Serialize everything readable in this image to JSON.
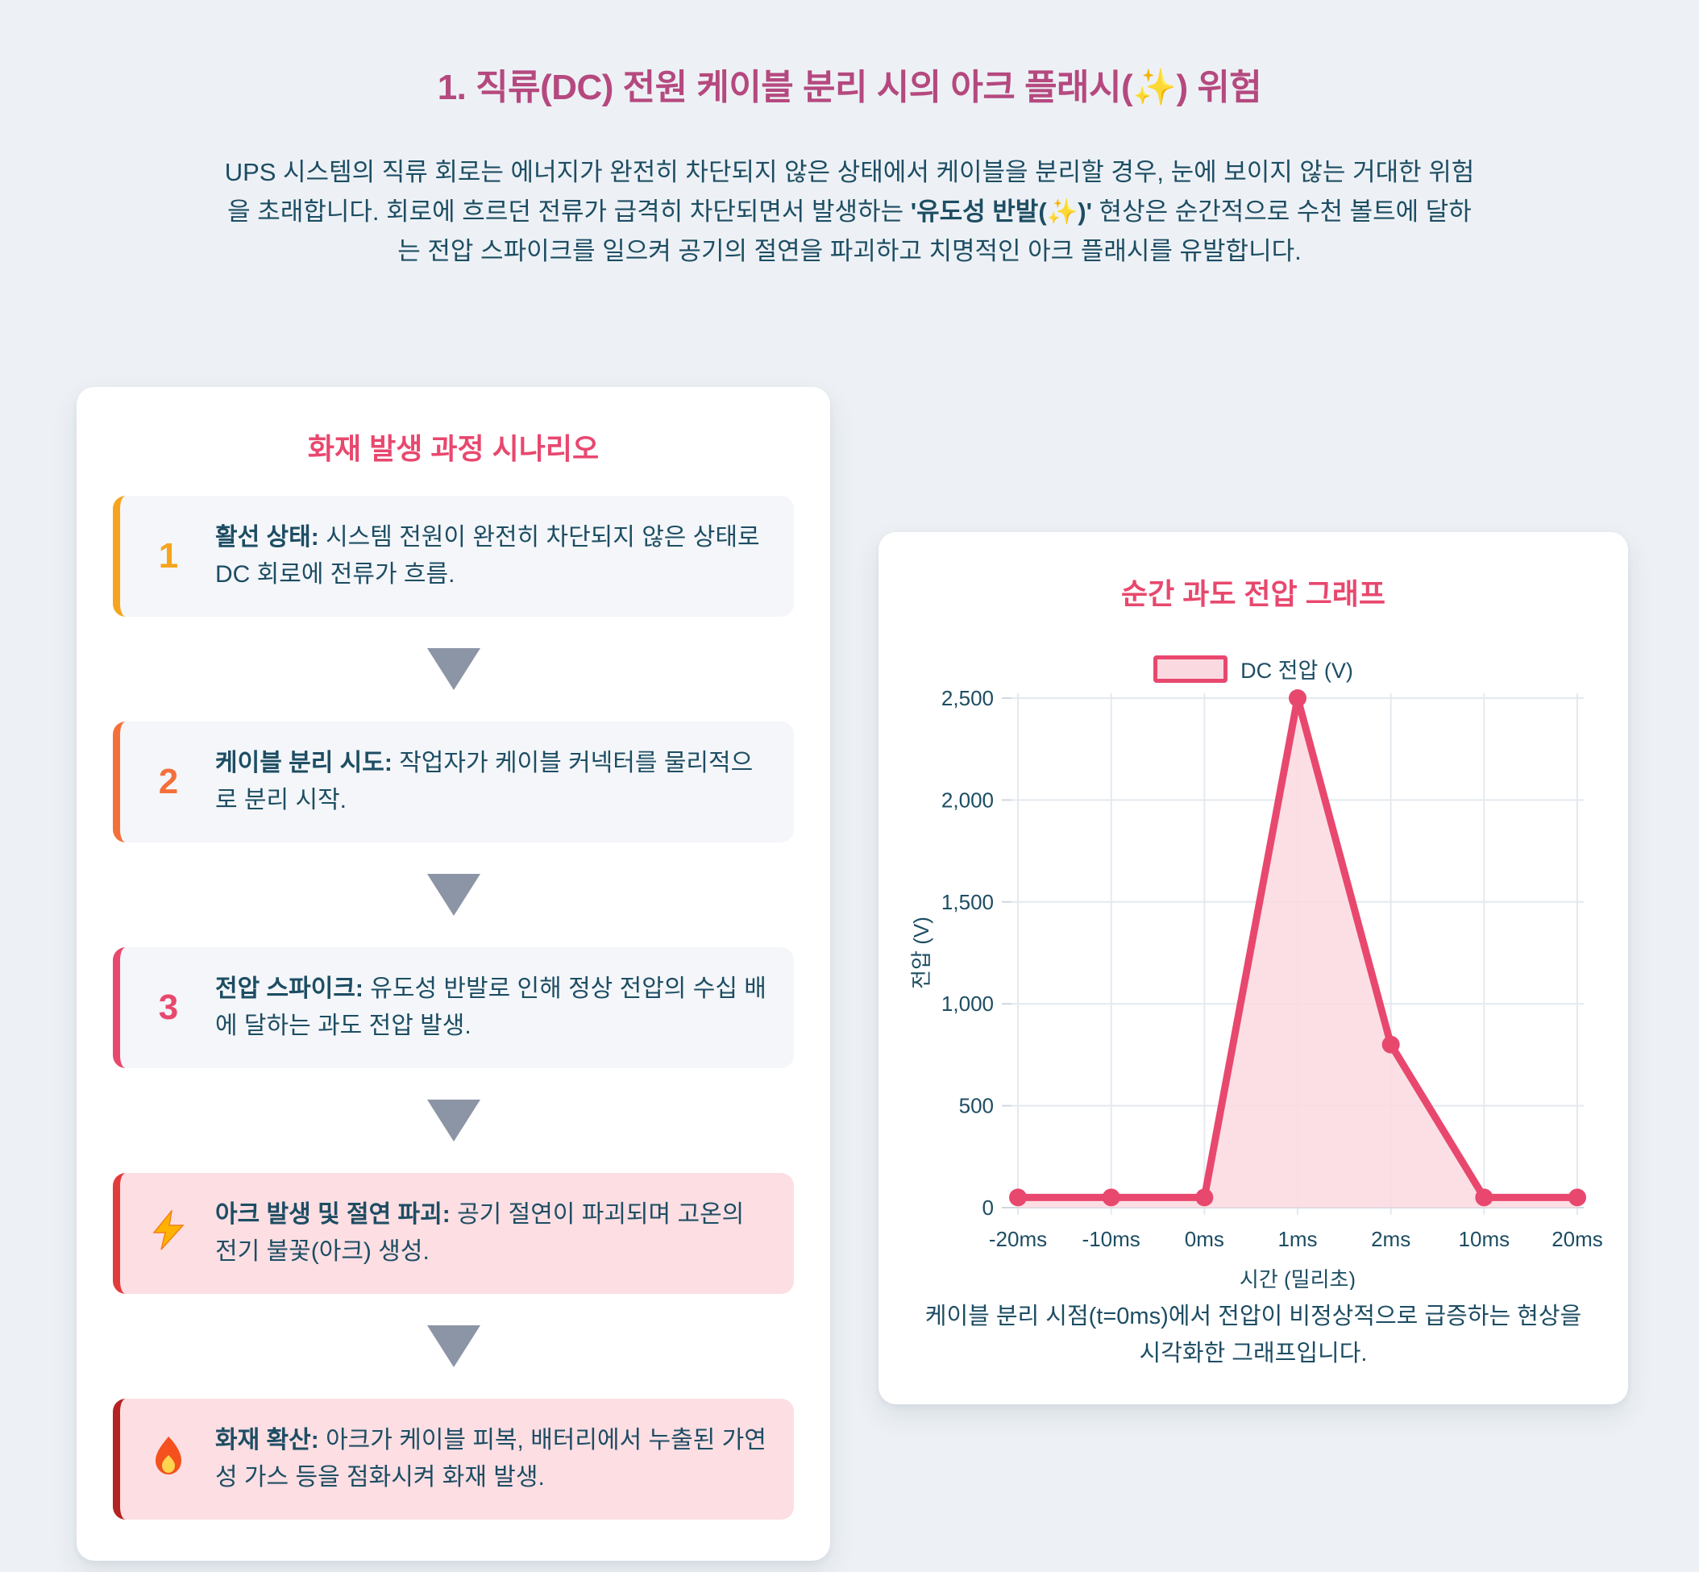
{
  "colors": {
    "page-bg": "#edf1f5",
    "page-title": "#b5497f",
    "accent-pink": "#e8486e",
    "body-text": "#1d4d63",
    "arrow-gray": "#8c95a5",
    "card-bg": "#ffffff",
    "step-bg": "#f4f6f9",
    "alert-bg": "#fcdee3"
  },
  "header": {
    "title": "1. 직류(DC) 전원 케이블 분리 시의 아크 플래시(✨) 위험",
    "intro_before": "UPS 시스템의 직류 회로는 에너지가 완전히 차단되지 않은 상태에서 케이블을 분리할 경우, 눈에 보이지 않는 거대한 위험을 초래합니다. 회로에 흐르던 전류가 급격히 차단되면서 발생하는 ",
    "intro_bold": "'유도성 반발(✨)'",
    "intro_after": " 현상은 순간적으로 수천 볼트에 달하는 전압 스파이크를 일으켜 공기의 절연을 파괴하고 치명적인 아크 플래시를 유발합니다."
  },
  "scenario": {
    "title": "화재 발생 과정 시나리오",
    "steps": [
      {
        "marker_type": "number",
        "marker": "1",
        "accent": "#f6a41d",
        "bg": "#f4f6f9",
        "label": "활선 상태:",
        "text": "시스템 전원이 완전히 차단되지 않은 상태로 DC 회로에 전류가 흐름."
      },
      {
        "marker_type": "number",
        "marker": "2",
        "accent": "#f4703a",
        "bg": "#f4f6f9",
        "label": "케이블 분리 시도:",
        "text": "작업자가 케이블 커넥터를 물리적으로 분리 시작."
      },
      {
        "marker_type": "number",
        "marker": "3",
        "accent": "#e8486e",
        "bg": "#f4f6f9",
        "label": "전압 스파이크:",
        "text": "유도성 반발로 인해 정상 전압의 수십 배에 달하는 과도 전압 발생."
      },
      {
        "marker_type": "icon",
        "marker": "⚡",
        "icon_name": "lightning-icon",
        "accent": "#e23b3b",
        "bg": "#fcdee3",
        "label": "아크 발생 및 절연 파괴:",
        "text": "공기 절연이 파괴되며 고온의 전기 불꽃(아크) 생성."
      },
      {
        "marker_type": "icon",
        "marker": "🔥",
        "icon_name": "fire-icon",
        "accent": "#b52222",
        "bg": "#fcdee3",
        "label": "화재 확산:",
        "text": "아크가 케이블 피복, 배터리에서 누출된 가연성 가스 등을 점화시켜 화재 발생."
      }
    ]
  },
  "chart_data": {
    "type": "area",
    "title": "순간 과도 전압 그래프",
    "categories": [
      "-20ms",
      "-10ms",
      "0ms",
      "1ms",
      "2ms",
      "10ms",
      "20ms"
    ],
    "series": [
      {
        "name": "DC 전압 (V)",
        "values": [
          50,
          50,
          50,
          2500,
          800,
          50,
          50
        ]
      }
    ],
    "xlabel": "시간 (밀리초)",
    "ylabel": "전압 (V)",
    "ylim": [
      0,
      2500
    ],
    "yticks": [
      0,
      500,
      1000,
      1500,
      2000,
      2500
    ],
    "grid": true,
    "legend_position": "top",
    "line_color": "#e8486e",
    "fill_color": "#fbd9e0",
    "caption": "케이블 분리 시점(t=0ms)에서 전압이 비정상적으로 급증하는 현상을 시각화한 그래프입니다."
  }
}
